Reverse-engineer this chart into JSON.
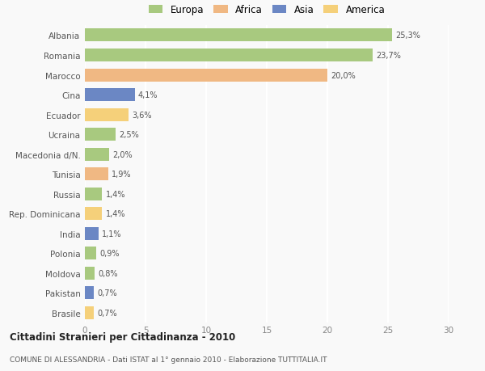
{
  "categories": [
    "Albania",
    "Romania",
    "Marocco",
    "Cina",
    "Ecuador",
    "Ucraina",
    "Macedonia d/N.",
    "Tunisia",
    "Russia",
    "Rep. Dominicana",
    "India",
    "Polonia",
    "Moldova",
    "Pakistan",
    "Brasile"
  ],
  "values": [
    25.3,
    23.7,
    20.0,
    4.1,
    3.6,
    2.5,
    2.0,
    1.9,
    1.4,
    1.4,
    1.1,
    0.9,
    0.8,
    0.7,
    0.7
  ],
  "labels": [
    "25,3%",
    "23,7%",
    "20,0%",
    "4,1%",
    "3,6%",
    "2,5%",
    "2,0%",
    "1,9%",
    "1,4%",
    "1,4%",
    "1,1%",
    "0,9%",
    "0,8%",
    "0,7%",
    "0,7%"
  ],
  "colors": [
    "#a8c97f",
    "#a8c97f",
    "#f0b883",
    "#6b87c4",
    "#f5d07a",
    "#a8c97f",
    "#a8c97f",
    "#f0b883",
    "#a8c97f",
    "#f5d07a",
    "#6b87c4",
    "#a8c97f",
    "#a8c97f",
    "#6b87c4",
    "#f5d07a"
  ],
  "legend_labels": [
    "Europa",
    "Africa",
    "Asia",
    "America"
  ],
  "legend_colors": [
    "#a8c97f",
    "#f0b883",
    "#6b87c4",
    "#f5d07a"
  ],
  "title": "Cittadini Stranieri per Cittadinanza - 2010",
  "subtitle": "COMUNE DI ALESSANDRIA - Dati ISTAT al 1° gennaio 2010 - Elaborazione TUTTITALIA.IT",
  "xlim": [
    0,
    30
  ],
  "xticks": [
    0,
    5,
    10,
    15,
    20,
    25,
    30
  ],
  "background_color": "#f9f9f9",
  "grid_color": "#ffffff",
  "bar_height": 0.65
}
